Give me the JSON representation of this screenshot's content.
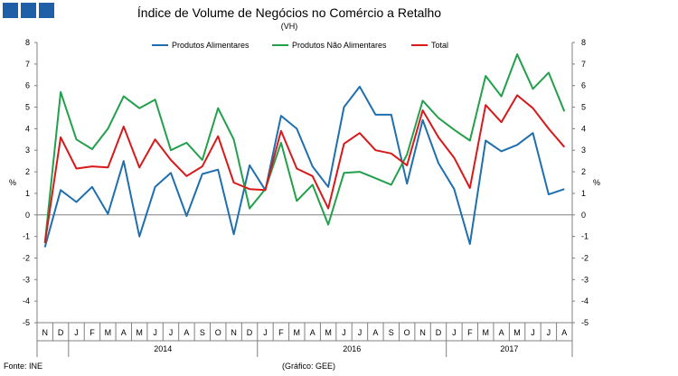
{
  "chart_data": {
    "type": "line",
    "title": "Índice de Volume de Negócios no Comércio a Retalho",
    "subtitle": "(VH)",
    "ylabel_left": "%",
    "ylabel_right": "%",
    "ylim": [
      -5,
      8
    ],
    "yticks": [
      -5,
      -4,
      -3,
      -2,
      -1,
      0,
      1,
      2,
      3,
      4,
      5,
      6,
      7,
      8
    ],
    "categories": [
      "N",
      "D",
      "J",
      "F",
      "M",
      "A",
      "M",
      "J",
      "J",
      "A",
      "S",
      "O",
      "N",
      "D",
      "J",
      "F",
      "M",
      "A",
      "M",
      "J",
      "J",
      "A",
      "S",
      "O",
      "N",
      "D",
      "J",
      "F",
      "M",
      "A",
      "M",
      "J",
      "J",
      "A"
    ],
    "years": [
      {
        "label": "2014",
        "start": 2,
        "end": 13
      },
      {
        "label": "2016",
        "start": 14,
        "end": 25
      },
      {
        "label": "2017",
        "start": 26,
        "end": 33
      }
    ],
    "series": [
      {
        "name": "Produtos Alimentares",
        "color": "#1f6fae",
        "values": [
          -1.5,
          1.15,
          0.6,
          1.3,
          0.05,
          2.5,
          -1.0,
          1.3,
          1.95,
          -0.05,
          1.9,
          2.1,
          -0.9,
          2.3,
          1.15,
          4.6,
          4.0,
          2.25,
          1.3,
          5.0,
          5.95,
          4.65,
          4.65,
          1.45,
          4.4,
          2.4,
          1.2,
          -1.35,
          3.45,
          2.95,
          3.25,
          3.8,
          0.95,
          1.2
        ]
      },
      {
        "name": "Produtos Não Alimentares",
        "color": "#22a04b",
        "values": [
          -1.3,
          5.7,
          3.5,
          3.05,
          4.0,
          5.5,
          4.95,
          5.35,
          3.0,
          3.35,
          2.55,
          4.95,
          3.5,
          0.3,
          1.2,
          3.35,
          0.65,
          1.4,
          -0.45,
          1.95,
          2.0,
          1.7,
          1.4,
          2.8,
          5.3,
          4.5,
          3.95,
          3.45,
          6.45,
          5.5,
          7.45,
          5.85,
          6.6,
          4.8
        ]
      },
      {
        "name": "Total",
        "color": "#d7191c",
        "values": [
          -1.3,
          3.6,
          2.15,
          2.25,
          2.2,
          4.1,
          2.2,
          3.5,
          2.55,
          1.8,
          2.25,
          3.65,
          1.5,
          1.2,
          1.15,
          3.9,
          2.15,
          1.8,
          0.3,
          3.3,
          3.8,
          3.0,
          2.85,
          2.3,
          4.85,
          3.6,
          2.65,
          1.25,
          5.1,
          4.3,
          5.55,
          4.95,
          4.0,
          3.15
        ]
      }
    ]
  },
  "footer": {
    "source": "Fonte: INE",
    "credit": "(Gráfico: GEE)"
  }
}
